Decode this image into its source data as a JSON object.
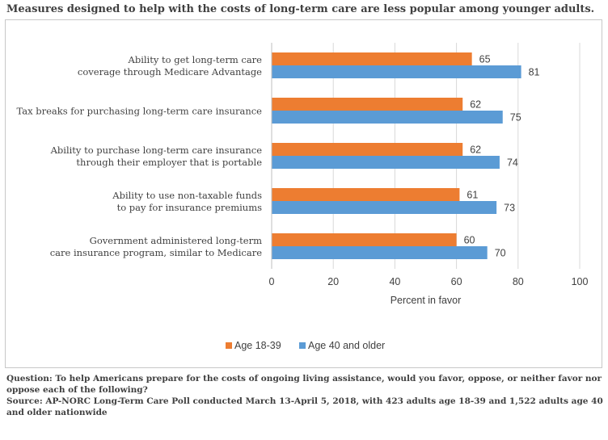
{
  "title": "Measures designed to help with the costs of long-term care are less popular among younger adults.",
  "notes": {
    "question": "Question: To help Americans prepare for the costs of ongoing living assistance, would you favor, oppose, or neither favor nor oppose each of the following?",
    "source": "Source: AP-NORC Long-Term Care Poll conducted March 13-April 5, 2018, with 423 adults age 18-39 and 1,522 adults age 40 and older nationwide"
  },
  "chart_data": {
    "type": "bar",
    "orientation": "horizontal",
    "categories": [
      [
        "Ability to get long-term care",
        "coverage through Medicare Advantage"
      ],
      [
        "Tax breaks for purchasing long-term care insurance"
      ],
      [
        "Ability to purchase long-term care insurance",
        "through their employer that is portable"
      ],
      [
        "Ability to use non-taxable funds",
        "to pay for insurance premiums"
      ],
      [
        "Government administered long-term",
        "care insurance program, similar to Medicare"
      ]
    ],
    "series": [
      {
        "name": "Age 18-39",
        "values": [
          65,
          62,
          62,
          61,
          60
        ],
        "color": "#ed7d31"
      },
      {
        "name": "Age 40 and older",
        "values": [
          81,
          75,
          74,
          73,
          70
        ],
        "color": "#5b9bd5"
      }
    ],
    "xlabel": "Percent in favor",
    "xlim": [
      0,
      100
    ],
    "xticks": [
      0,
      20,
      40,
      60,
      80,
      100
    ],
    "grid": true,
    "legend_position": "bottom"
  }
}
